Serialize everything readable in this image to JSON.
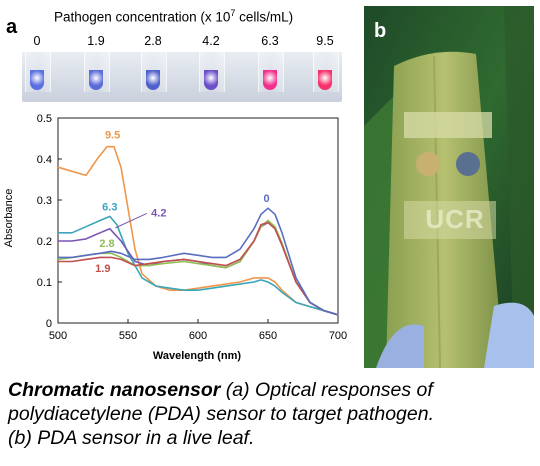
{
  "panel_a_letter": "a",
  "panel_b_letter": "b",
  "concentration_title": "Pathogen concentration (x 10",
  "concentration_exponent": "7",
  "concentration_unit": " cells/mL)",
  "concentrations": [
    "0",
    "1.9",
    "2.8",
    "4.2",
    "6.3",
    "9.5"
  ],
  "tube_colors": [
    "#5a6fe0",
    "#5b6bd8",
    "#5060cc",
    "#6a4fc8",
    "#f0308a",
    "#f5306a"
  ],
  "leaf_text": "UCR",
  "caption": {
    "title": "Chromatic nanosensor",
    "line1": " (a) Optical responses of",
    "line2": "polydiacetylene (PDA) sensor to target pathogen.",
    "line3": "(b) PDA sensor in a live leaf."
  },
  "chart_data": {
    "type": "line",
    "xlabel": "Wavelength (nm)",
    "ylabel": "Absorbance",
    "xlim": [
      500,
      700
    ],
    "ylim": [
      0,
      0.5
    ],
    "xticks": [
      500,
      550,
      600,
      650,
      700
    ],
    "yticks": [
      0,
      0.1,
      0.2,
      0.3,
      0.4,
      0.5
    ],
    "grid": false,
    "series": [
      {
        "name": "9.5",
        "color": "#f0964a",
        "x": [
          500,
          510,
          520,
          528,
          535,
          540,
          545,
          550,
          555,
          560,
          570,
          580,
          590,
          600,
          610,
          620,
          630,
          640,
          645,
          650,
          655,
          660,
          670,
          680,
          690,
          700
        ],
        "y": [
          0.38,
          0.37,
          0.36,
          0.4,
          0.43,
          0.43,
          0.38,
          0.28,
          0.18,
          0.12,
          0.09,
          0.08,
          0.08,
          0.085,
          0.09,
          0.095,
          0.1,
          0.11,
          0.11,
          0.11,
          0.1,
          0.08,
          0.05,
          0.04,
          0.03,
          0.02
        ]
      },
      {
        "name": "6.3",
        "color": "#3aa6b9",
        "x": [
          500,
          510,
          520,
          530,
          537,
          542,
          550,
          560,
          570,
          580,
          590,
          600,
          610,
          620,
          630,
          640,
          645,
          650,
          655,
          660,
          670,
          680,
          690,
          700
        ],
        "y": [
          0.22,
          0.22,
          0.235,
          0.25,
          0.26,
          0.24,
          0.17,
          0.11,
          0.09,
          0.085,
          0.08,
          0.08,
          0.085,
          0.09,
          0.095,
          0.1,
          0.105,
          0.1,
          0.09,
          0.075,
          0.05,
          0.04,
          0.03,
          0.02
        ]
      },
      {
        "name": "4.2",
        "color": "#7a56b4",
        "x": [
          500,
          510,
          520,
          530,
          537,
          545,
          555,
          565,
          575,
          590,
          600,
          610,
          620,
          630,
          640,
          645,
          650,
          655,
          660,
          670,
          680,
          690,
          700
        ],
        "y": [
          0.2,
          0.2,
          0.205,
          0.22,
          0.23,
          0.2,
          0.15,
          0.14,
          0.15,
          0.155,
          0.15,
          0.14,
          0.135,
          0.15,
          0.2,
          0.235,
          0.245,
          0.23,
          0.19,
          0.1,
          0.05,
          0.03,
          0.02
        ]
      },
      {
        "name": "2.8",
        "color": "#8fbe55",
        "x": [
          500,
          510,
          520,
          530,
          538,
          545,
          555,
          565,
          575,
          590,
          600,
          610,
          620,
          630,
          640,
          645,
          650,
          655,
          660,
          670,
          680,
          690,
          700
        ],
        "y": [
          0.155,
          0.16,
          0.165,
          0.17,
          0.17,
          0.16,
          0.14,
          0.14,
          0.145,
          0.15,
          0.145,
          0.14,
          0.135,
          0.15,
          0.2,
          0.235,
          0.25,
          0.235,
          0.195,
          0.1,
          0.05,
          0.03,
          0.02
        ]
      },
      {
        "name": "1.9",
        "color": "#c0504d",
        "x": [
          500,
          510,
          520,
          530,
          538,
          545,
          555,
          565,
          575,
          590,
          600,
          610,
          620,
          630,
          640,
          645,
          650,
          655,
          660,
          670,
          680,
          690,
          700
        ],
        "y": [
          0.15,
          0.15,
          0.155,
          0.16,
          0.16,
          0.155,
          0.14,
          0.145,
          0.15,
          0.155,
          0.15,
          0.145,
          0.14,
          0.155,
          0.2,
          0.24,
          0.245,
          0.23,
          0.19,
          0.1,
          0.05,
          0.03,
          0.02
        ]
      },
      {
        "name": "0",
        "color": "#5a6ebf",
        "x": [
          500,
          510,
          520,
          530,
          538,
          545,
          555,
          565,
          575,
          590,
          600,
          610,
          620,
          630,
          640,
          645,
          650,
          655,
          660,
          670,
          680,
          690,
          700
        ],
        "y": [
          0.16,
          0.16,
          0.165,
          0.17,
          0.175,
          0.17,
          0.155,
          0.155,
          0.16,
          0.17,
          0.165,
          0.16,
          0.16,
          0.18,
          0.23,
          0.265,
          0.28,
          0.265,
          0.22,
          0.11,
          0.05,
          0.03,
          0.02
        ]
      }
    ],
    "annotations": [
      {
        "text": "9.5",
        "x": 539,
        "y": 0.45,
        "color": "#f0964a"
      },
      {
        "text": "6.3",
        "x": 537,
        "y": 0.275,
        "color": "#3aa6b9"
      },
      {
        "text": "4.2",
        "x": 572,
        "y": 0.26,
        "color": "#7a56b4"
      },
      {
        "text": "2.8",
        "x": 535,
        "y": 0.185,
        "color": "#8fbe55"
      },
      {
        "text": "1.9",
        "x": 532,
        "y": 0.125,
        "color": "#c0504d"
      },
      {
        "text": "0",
        "x": 649,
        "y": 0.295,
        "color": "#5a6ebf"
      }
    ]
  }
}
